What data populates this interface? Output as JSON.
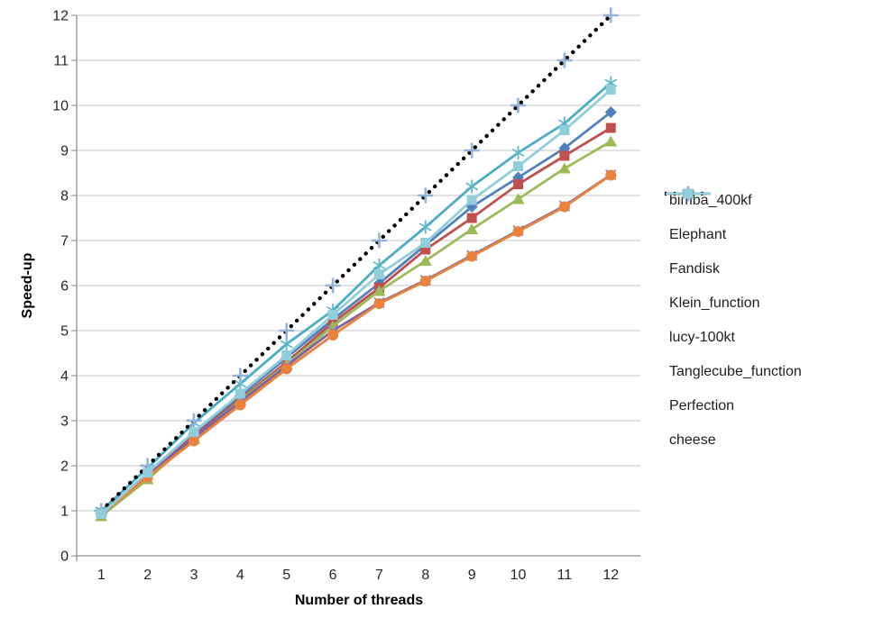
{
  "chart_data": {
    "type": "line",
    "title": "",
    "xlabel": "Number of threads",
    "ylabel": "Speed-up",
    "x": [
      1,
      2,
      3,
      4,
      5,
      6,
      7,
      8,
      9,
      10,
      11,
      12
    ],
    "xticks": [
      "1",
      "2",
      "3",
      "4",
      "5",
      "6",
      "7",
      "8",
      "9",
      "10",
      "11",
      "12"
    ],
    "yticks": [
      "0",
      "1",
      "2",
      "3",
      "4",
      "5",
      "6",
      "7",
      "8",
      "9",
      "10",
      "11",
      "12"
    ],
    "ylim": [
      0,
      12
    ],
    "xlim": [
      1,
      12
    ],
    "grid": true,
    "legend_position": "right",
    "axis_color": "#8a8a8a",
    "gridline_color": "#c6c6c6",
    "series": [
      {
        "name": "bimba_400kf",
        "marker": "diamond",
        "color": "#4F81BD",
        "marker_color": "#4F81BD",
        "line": "solid",
        "values": [
          0.95,
          1.82,
          2.7,
          3.55,
          4.4,
          5.25,
          6.05,
          6.9,
          7.75,
          8.4,
          9.05,
          9.85
        ]
      },
      {
        "name": "Elephant",
        "marker": "square",
        "color": "#C0504D",
        "marker_color": "#C0504D",
        "line": "solid",
        "values": [
          0.95,
          1.8,
          2.65,
          3.48,
          4.3,
          5.18,
          5.95,
          6.8,
          7.5,
          8.25,
          8.88,
          9.5
        ]
      },
      {
        "name": "Fandisk",
        "marker": "triangle",
        "color": "#9BBB59",
        "marker_color": "#9BBB59",
        "line": "solid",
        "values": [
          0.88,
          1.7,
          2.6,
          3.45,
          4.25,
          5.1,
          5.88,
          6.55,
          7.25,
          7.92,
          8.6,
          9.2
        ]
      },
      {
        "name": "Klein_function",
        "marker": "x",
        "color": "#8064A2",
        "marker_color": "#9080B8",
        "line": "solid",
        "values": [
          0.97,
          1.8,
          2.62,
          3.42,
          4.22,
          5.0,
          5.62,
          6.12,
          6.67,
          7.22,
          7.77,
          8.46
        ]
      },
      {
        "name": "lucy-100kt",
        "marker": "asterisk",
        "color": "#4BACC6",
        "marker_color": "#5BB5CC",
        "line": "solid",
        "values": [
          1.0,
          1.95,
          2.95,
          3.82,
          4.7,
          5.45,
          6.45,
          7.3,
          8.2,
          8.95,
          9.6,
          10.5
        ]
      },
      {
        "name": "Tanglecube_function",
        "marker": "circle",
        "color": "#E8823C",
        "marker_color": "#E8823C",
        "line": "solid",
        "values": [
          0.92,
          1.75,
          2.55,
          3.35,
          4.15,
          4.9,
          5.6,
          6.1,
          6.65,
          7.2,
          7.75,
          8.45
        ]
      },
      {
        "name": "Perfection",
        "marker": "plus",
        "color": "#000000",
        "marker_color": "#95B3D7",
        "line": "dotted",
        "values": [
          1,
          2,
          3,
          4,
          5,
          6,
          7,
          8,
          9,
          10,
          11,
          12
        ]
      },
      {
        "name": "cheese",
        "marker": "square",
        "color": "#92CDDC",
        "marker_color": "#92CDDC",
        "line": "solid",
        "values": [
          0.93,
          1.85,
          2.75,
          3.6,
          4.45,
          5.35,
          6.25,
          6.95,
          7.9,
          8.65,
          9.45,
          10.35
        ]
      }
    ]
  }
}
